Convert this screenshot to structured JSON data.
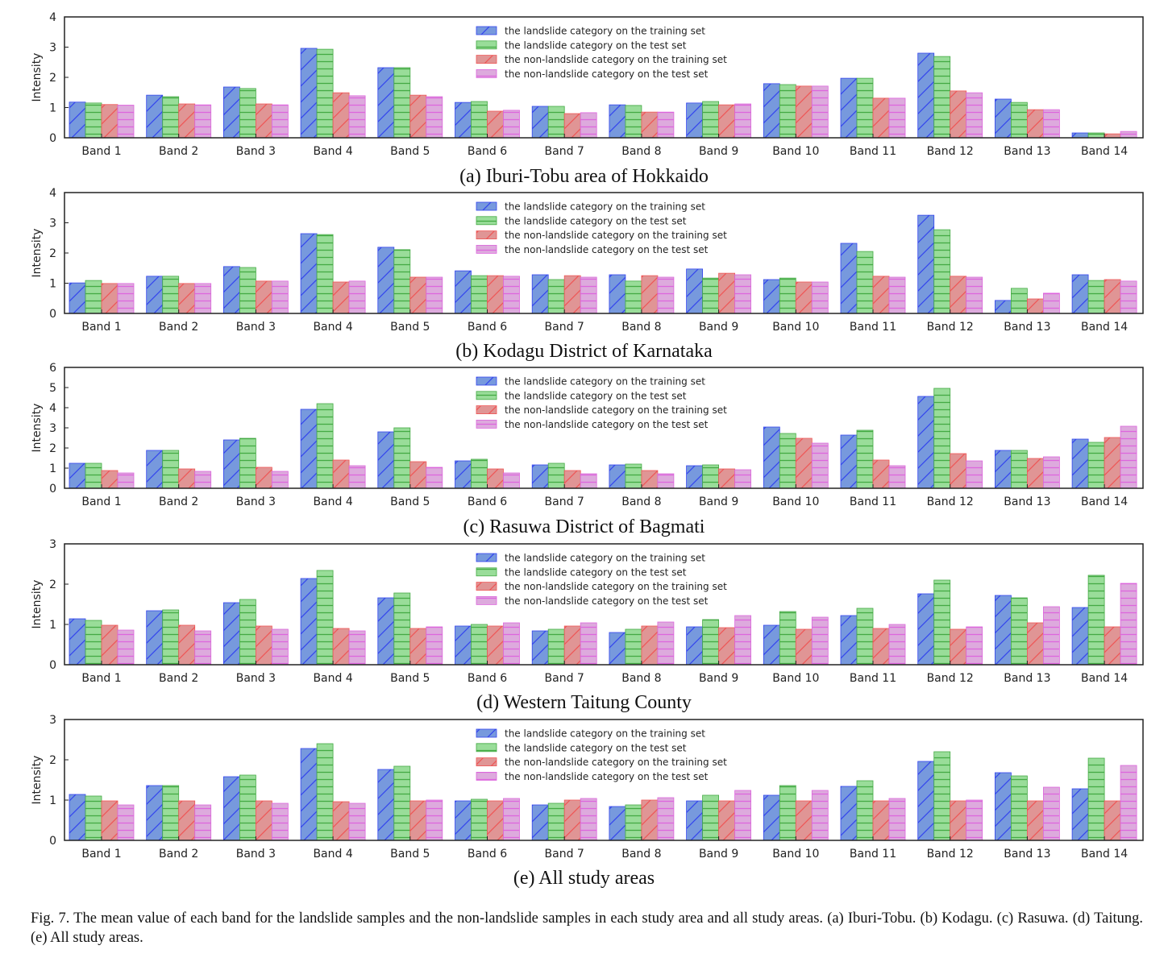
{
  "colors": {
    "landslide_train": {
      "fill": "#7799dd",
      "hatch": "#3344ee",
      "hatch_style": "diagonal"
    },
    "landslide_test": {
      "fill": "#99dd99",
      "hatch": "#44aa44",
      "hatch_style": "horizontal"
    },
    "nonlandslide_train": {
      "fill": "#e09595",
      "hatch": "#ee5555",
      "hatch_style": "diagonal"
    },
    "nonlandslide_test": {
      "fill": "#ddaadd",
      "hatch": "#dd66dd",
      "hatch_style": "horizontal"
    }
  },
  "figure_caption": "Fig. 7.  The mean value of each band for the landslide samples and the non-landslide samples in each study area and all study areas. (a) Iburi-Tobu. (b) Kodagu. (c) Rasuwa. (d) Taitung. (e) All study areas.",
  "chart_data": [
    {
      "type": "bar",
      "caption": "(a) Iburi-Tobu area of Hokkaido",
      "ylabel": "Intensity",
      "ylim": [
        0,
        4
      ],
      "yticks": [
        "0",
        "1",
        "2",
        "3",
        "4"
      ],
      "legend_position": "top-center",
      "categories": [
        "Band 1",
        "Band 2",
        "Band 3",
        "Band 4",
        "Band 5",
        "Band 6",
        "Band 7",
        "Band 8",
        "Band 9",
        "Band 10",
        "Band 11",
        "Band 12",
        "Band 13",
        "Band 14"
      ],
      "series": [
        {
          "name": "the landslide category on the training set",
          "values": [
            1.18,
            1.41,
            1.68,
            2.96,
            2.32,
            1.17,
            1.04,
            1.09,
            1.15,
            1.79,
            1.97,
            2.8,
            1.28,
            0.16
          ]
        },
        {
          "name": "the landslide category on the test set",
          "values": [
            1.15,
            1.36,
            1.63,
            2.93,
            2.32,
            1.2,
            1.04,
            1.07,
            1.2,
            1.76,
            1.97,
            2.69,
            1.17,
            0.16
          ]
        },
        {
          "name": "the non-landslide category on the training set",
          "values": [
            1.1,
            1.12,
            1.12,
            1.49,
            1.41,
            0.88,
            0.8,
            0.85,
            1.09,
            1.71,
            1.31,
            1.55,
            0.93,
            0.13
          ]
        },
        {
          "name": "the non-landslide category on the test set",
          "values": [
            1.08,
            1.09,
            1.09,
            1.39,
            1.36,
            0.91,
            0.83,
            0.85,
            1.12,
            1.71,
            1.31,
            1.49,
            0.93,
            0.21
          ]
        }
      ]
    },
    {
      "type": "bar",
      "caption": "(b) Kodagu District of Karnataka",
      "ylabel": "Intensity",
      "ylim": [
        0,
        4
      ],
      "yticks": [
        "0",
        "1",
        "2",
        "3",
        "4"
      ],
      "legend_position": "top-center",
      "categories": [
        "Band 1",
        "Band 2",
        "Band 3",
        "Band 4",
        "Band 5",
        "Band 6",
        "Band 7",
        "Band 8",
        "Band 9",
        "Band 10",
        "Band 11",
        "Band 12",
        "Band 13",
        "Band 14"
      ],
      "series": [
        {
          "name": "the landslide category on the training set",
          "values": [
            1.01,
            1.23,
            1.55,
            2.64,
            2.19,
            1.41,
            1.28,
            1.28,
            1.47,
            1.12,
            2.32,
            3.25,
            0.43,
            1.28
          ]
        },
        {
          "name": "the landslide category on the test set",
          "values": [
            1.09,
            1.23,
            1.52,
            2.61,
            2.11,
            1.25,
            1.12,
            1.07,
            1.17,
            1.17,
            2.05,
            2.77,
            0.83,
            1.09
          ]
        },
        {
          "name": "the non-landslide category on the training set",
          "values": [
            0.99,
            0.99,
            1.07,
            1.04,
            1.2,
            1.25,
            1.25,
            1.25,
            1.33,
            1.04,
            1.23,
            1.23,
            0.48,
            1.12
          ]
        },
        {
          "name": "the non-landslide category on the test set",
          "values": [
            0.99,
            0.99,
            1.07,
            1.07,
            1.2,
            1.23,
            1.2,
            1.2,
            1.28,
            1.04,
            1.2,
            1.2,
            0.67,
            1.07
          ]
        }
      ]
    },
    {
      "type": "bar",
      "caption": "(c) Rasuwa District of Bagmati",
      "ylabel": "Intensity",
      "ylim": [
        0,
        6
      ],
      "yticks": [
        "0",
        "1",
        "2",
        "3",
        "4",
        "5",
        "6"
      ],
      "legend_position": "top-center",
      "categories": [
        "Band 1",
        "Band 2",
        "Band 3",
        "Band 4",
        "Band 5",
        "Band 6",
        "Band 7",
        "Band 8",
        "Band 9",
        "Band 10",
        "Band 11",
        "Band 12",
        "Band 13",
        "Band 14"
      ],
      "series": [
        {
          "name": "the landslide category on the training set",
          "values": [
            1.24,
            1.88,
            2.4,
            3.92,
            2.8,
            1.36,
            1.16,
            1.16,
            1.12,
            3.04,
            2.64,
            4.56,
            1.88,
            2.44
          ]
        },
        {
          "name": "the landslide category on the test set",
          "values": [
            1.24,
            1.88,
            2.48,
            4.2,
            3.0,
            1.44,
            1.24,
            1.2,
            1.16,
            2.72,
            2.88,
            4.96,
            1.88,
            2.28
          ]
        },
        {
          "name": "the non-landslide category on the training set",
          "values": [
            0.88,
            0.96,
            1.04,
            1.4,
            1.32,
            0.96,
            0.88,
            0.88,
            0.96,
            2.48,
            1.4,
            1.72,
            1.48,
            2.52
          ]
        },
        {
          "name": "the non-landslide category on the test set",
          "values": [
            0.76,
            0.84,
            0.84,
            1.12,
            1.04,
            0.76,
            0.72,
            0.72,
            0.92,
            2.24,
            1.12,
            1.36,
            1.56,
            3.08
          ]
        }
      ]
    },
    {
      "type": "bar",
      "caption": "(d) Western Taitung County",
      "ylabel": "Intensity",
      "ylim": [
        0,
        3
      ],
      "yticks": [
        "0",
        "1",
        "2",
        "3"
      ],
      "legend_position": "top-center",
      "categories": [
        "Band 1",
        "Band 2",
        "Band 3",
        "Band 4",
        "Band 5",
        "Band 6",
        "Band 7",
        "Band 8",
        "Band 9",
        "Band 10",
        "Band 11",
        "Band 12",
        "Band 13",
        "Band 14"
      ],
      "series": [
        {
          "name": "the landslide category on the training set",
          "values": [
            1.14,
            1.34,
            1.54,
            2.14,
            1.66,
            0.96,
            0.84,
            0.8,
            0.94,
            0.98,
            1.22,
            1.76,
            1.72,
            1.42
          ]
        },
        {
          "name": "the landslide category on the test set",
          "values": [
            1.1,
            1.36,
            1.62,
            2.34,
            1.78,
            1.0,
            0.88,
            0.88,
            1.12,
            1.32,
            1.4,
            2.1,
            1.66,
            2.22
          ]
        },
        {
          "name": "the non-landslide category on the training set",
          "values": [
            0.98,
            0.98,
            0.96,
            0.9,
            0.9,
            0.96,
            0.96,
            0.96,
            0.92,
            0.88,
            0.9,
            0.88,
            1.04,
            0.94
          ]
        },
        {
          "name": "the non-landslide category on the test set",
          "values": [
            0.86,
            0.84,
            0.88,
            0.84,
            0.94,
            1.04,
            1.04,
            1.06,
            1.22,
            1.18,
            1.0,
            0.94,
            1.44,
            2.02
          ]
        }
      ]
    },
    {
      "type": "bar",
      "caption": "(e) All study areas",
      "ylabel": "Intensity",
      "ylim": [
        0,
        3
      ],
      "yticks": [
        "0",
        "1",
        "2",
        "3"
      ],
      "legend_position": "top-center",
      "categories": [
        "Band 1",
        "Band 2",
        "Band 3",
        "Band 4",
        "Band 5",
        "Band 6",
        "Band 7",
        "Band 8",
        "Band 9",
        "Band 10",
        "Band 11",
        "Band 12",
        "Band 13",
        "Band 14"
      ],
      "series": [
        {
          "name": "the landslide category on the training set",
          "values": [
            1.14,
            1.36,
            1.58,
            2.28,
            1.76,
            0.98,
            0.88,
            0.84,
            0.98,
            1.12,
            1.34,
            1.96,
            1.68,
            1.28
          ]
        },
        {
          "name": "the landslide category on the test set",
          "values": [
            1.1,
            1.36,
            1.62,
            2.4,
            1.84,
            1.02,
            0.92,
            0.88,
            1.12,
            1.36,
            1.48,
            2.2,
            1.6,
            2.04
          ]
        },
        {
          "name": "the non-landslide category on the training set",
          "values": [
            0.98,
            0.98,
            0.98,
            0.96,
            0.98,
            0.98,
            1.0,
            1.0,
            0.98,
            0.98,
            0.98,
            0.98,
            0.98,
            0.98
          ]
        },
        {
          "name": "the non-landslide category on the test set",
          "values": [
            0.88,
            0.88,
            0.92,
            0.92,
            1.0,
            1.04,
            1.04,
            1.06,
            1.24,
            1.24,
            1.04,
            1.0,
            1.32,
            1.86
          ]
        }
      ]
    }
  ]
}
